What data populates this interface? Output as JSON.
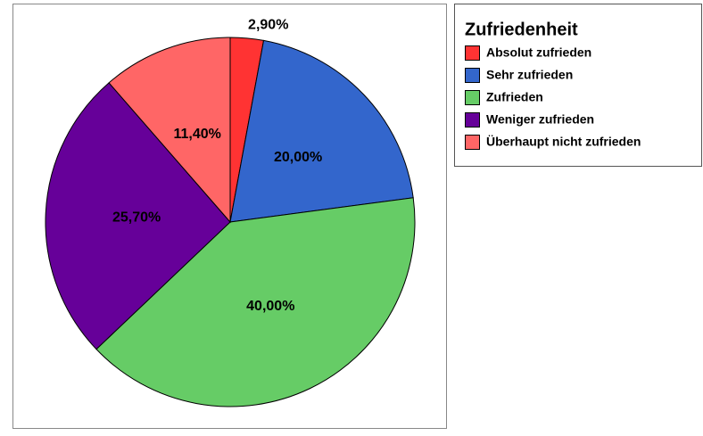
{
  "chart_data": {
    "type": "pie",
    "legend_title": "Zufriedenheit",
    "categories": [
      "Absolut zufrieden",
      "Sehr zufrieden",
      "Zufrieden",
      "Weniger zufrieden",
      "Überhaupt nicht zufrieden"
    ],
    "values": [
      2.9,
      20,
      40,
      25.7,
      11.4
    ],
    "value_labels": [
      "2,90%",
      "20,00%",
      "40,00%",
      "25,70%",
      "11,40%"
    ],
    "colors": [
      "#ff3333",
      "#3366cc",
      "#66cc66",
      "#660099",
      "#ff6666"
    ],
    "legend": "upper right"
  }
}
